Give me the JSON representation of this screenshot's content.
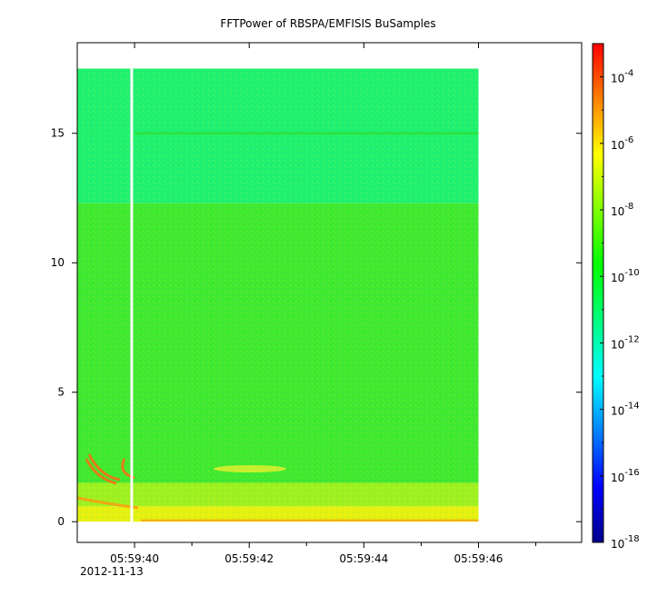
{
  "chart_data": {
    "type": "heatmap",
    "title": "FFTPower of RBSPA/EMFISIS  BuSamples",
    "xlabel": "",
    "ylabel": "",
    "x_date_label": "2012-11-13",
    "x_range": [
      "05:59:39.0",
      "05:59:47.8"
    ],
    "y_range": [
      -0.8,
      18.5
    ],
    "x_ticks": [
      {
        "time": "05:59:40",
        "label": "05:59:40"
      },
      {
        "time": "05:59:42",
        "label": "05:59:42"
      },
      {
        "time": "05:59:44",
        "label": "05:59:44"
      },
      {
        "time": "05:59:46",
        "label": "05:59:46"
      }
    ],
    "x_minor_ticks": [
      "05:59:41",
      "05:59:43",
      "05:59:45",
      "05:59:47"
    ],
    "y_ticks": [
      {
        "value": 0,
        "label": "0"
      },
      {
        "value": 5,
        "label": "5"
      },
      {
        "value": 10,
        "label": "10"
      },
      {
        "value": 15,
        "label": "15"
      }
    ],
    "data_extent": {
      "time_start": "05:59:39.0",
      "time_end": "05:59:46.0",
      "y_min": 0,
      "y_max": 17.5
    },
    "gap": {
      "time": "05:59:39.95"
    },
    "colorbar": {
      "scale": "log",
      "range": [
        1e-18,
        0.001
      ],
      "colors": [
        "#00008b",
        "#0000ff",
        "#0080ff",
        "#00ffff",
        "#00ff80",
        "#00ff00",
        "#80ff00",
        "#ffff00",
        "#ff8000",
        "#ff0000"
      ],
      "ticks": [
        {
          "exp": "-18",
          "label": "10"
        },
        {
          "exp": "-16",
          "label": "10"
        },
        {
          "exp": "-14",
          "label": "10"
        },
        {
          "exp": "-12",
          "label": "10"
        },
        {
          "exp": "-10",
          "label": "10"
        },
        {
          "exp": "-8",
          "label": "10"
        },
        {
          "exp": "-6",
          "label": "10"
        },
        {
          "exp": "-4",
          "label": "10"
        }
      ]
    },
    "bands": [
      {
        "y_min": 12.3,
        "y_max": 17.5,
        "color": "#20f070"
      },
      {
        "y_min": 1.5,
        "y_max": 12.3,
        "color": "#40e830"
      },
      {
        "y_min": 0.6,
        "y_max": 1.5,
        "color": "#a0f020"
      },
      {
        "y_min": 0.0,
        "y_max": 0.6,
        "color": "#e8f010"
      }
    ],
    "features": [
      {
        "type": "line",
        "y": 15.0,
        "color": "#30e030"
      }
    ]
  }
}
